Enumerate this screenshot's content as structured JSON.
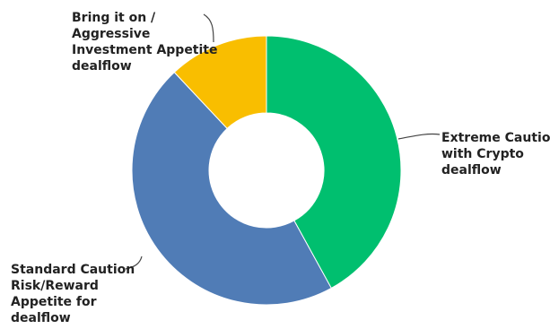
{
  "chart_data": {
    "type": "pie",
    "donut": true,
    "slices": [
      {
        "name": "Extreme Caution with Crypto dealflow",
        "label_lines": [
          "Extreme Caution",
          "with Crypto",
          "dealflow"
        ],
        "value": 42,
        "color": "#00bf6f"
      },
      {
        "name": "Standard Caution Risk/Reward Appetite for dealflow",
        "label_lines": [
          "Standard Caution",
          "Risk/Reward",
          "Appetite for",
          "dealflow"
        ],
        "value": 46,
        "color": "#507cb6"
      },
      {
        "name": "Bring it on / Aggressive Investment Appetite dealflow",
        "label_lines": [
          "Bring it on /",
          "Aggressive",
          "Investment Appetite",
          "dealflow"
        ],
        "value": 12,
        "color": "#f9be00"
      }
    ],
    "title": "",
    "legend": "none"
  }
}
